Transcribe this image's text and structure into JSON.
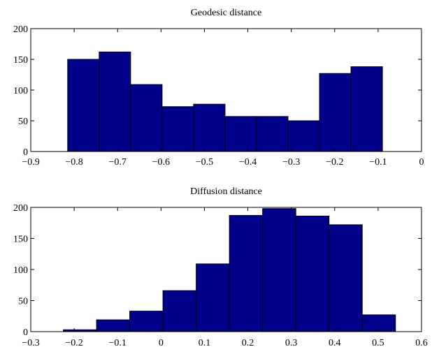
{
  "colors": {
    "bar_fill": "#00008b",
    "bar_edge": "#000000",
    "background": "#ffffff"
  },
  "chart_data": [
    {
      "type": "bar",
      "title": "Geodesic distance",
      "xlim": [
        -0.9,
        0
      ],
      "ylim": [
        0,
        200
      ],
      "xticks": [
        -0.9,
        -0.8,
        -0.7,
        -0.6,
        -0.5,
        -0.4,
        -0.3,
        -0.2,
        -0.1,
        0
      ],
      "xtick_labels": [
        "−0.9",
        "−0.8",
        "−0.7",
        "−0.6",
        "−0.5",
        "−0.4",
        "−0.3",
        "−0.2",
        "−0.1",
        "0"
      ],
      "yticks": [
        0,
        50,
        100,
        150,
        200
      ],
      "ytick_labels": [
        "0",
        "50",
        "100",
        "150",
        "200"
      ],
      "bin_edges": [
        -0.815,
        -0.7425,
        -0.67,
        -0.5975,
        -0.525,
        -0.4525,
        -0.38,
        -0.3075,
        -0.235,
        -0.1625,
        -0.09
      ],
      "values": [
        150,
        162,
        109,
        73,
        77,
        57,
        57,
        50,
        127,
        138
      ],
      "grid": false
    },
    {
      "type": "bar",
      "title": "Diffusion distance",
      "xlim": [
        -0.3,
        0.6
      ],
      "ylim": [
        0,
        200
      ],
      "xticks": [
        -0.3,
        -0.2,
        -0.1,
        0,
        0.1,
        0.2,
        0.3,
        0.4,
        0.5,
        0.6
      ],
      "xtick_labels": [
        "−0.3",
        "−0.2",
        "−0.1",
        "0",
        "0.1",
        "0.2",
        "0.3",
        "0.4",
        "0.5",
        "0.6"
      ],
      "yticks": [
        0,
        50,
        100,
        150,
        200
      ],
      "ytick_labels": [
        "0",
        "50",
        "100",
        "150",
        "200"
      ],
      "bin_edges": [
        -0.225,
        -0.1485,
        -0.072,
        0.0045,
        0.081,
        0.1575,
        0.234,
        0.3105,
        0.387,
        0.4635,
        0.54
      ],
      "values": [
        3,
        19,
        33,
        66,
        109,
        187,
        198,
        186,
        172,
        27
      ],
      "grid": false
    }
  ]
}
